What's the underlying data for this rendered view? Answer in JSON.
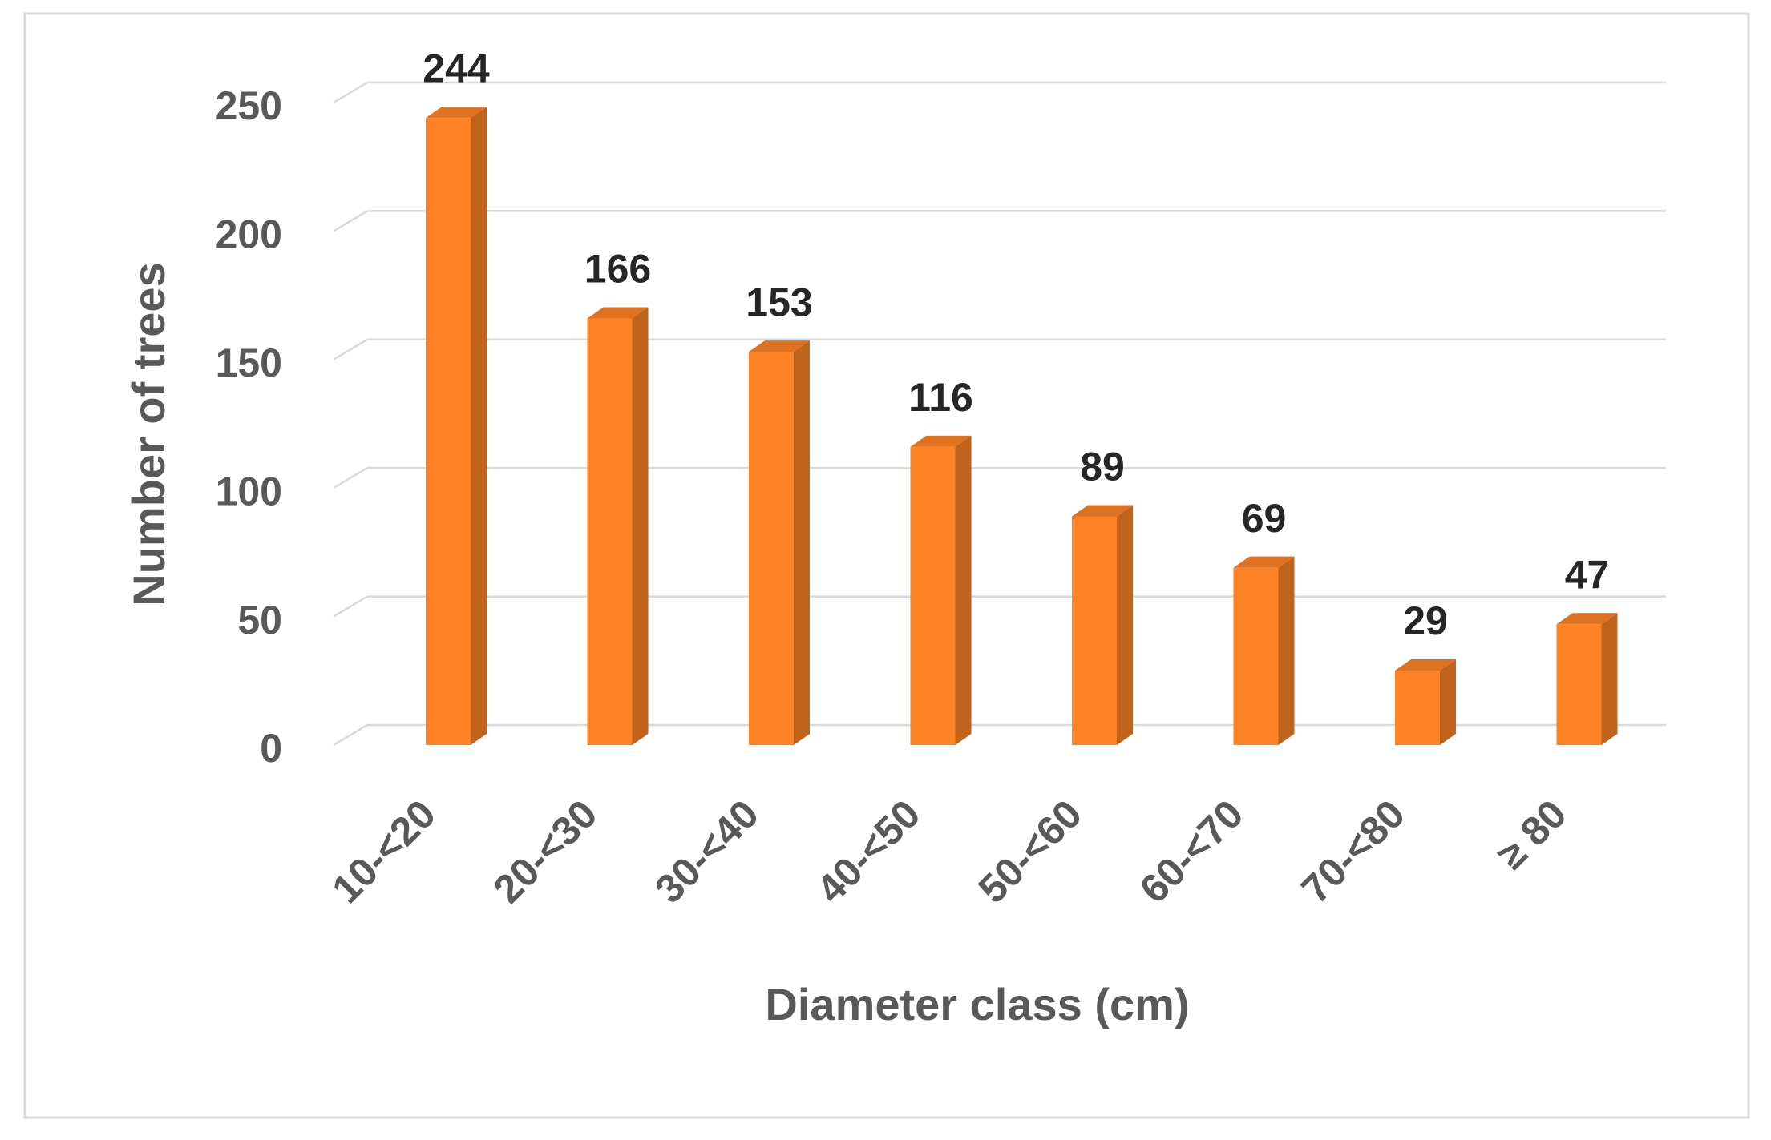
{
  "chart_data": {
    "type": "bar",
    "x_label": "Diameter class (cm)",
    "y_label": "Number of trees",
    "categories": [
      "10-<20",
      "20-<30",
      "30-<40",
      "40-<50",
      "50-<60",
      "60-<70",
      "70-<80",
      "≥ 80"
    ],
    "values": [
      244,
      166,
      153,
      116,
      89,
      69,
      29,
      47
    ],
    "color": "#fd8226",
    "ylim": [
      0,
      250
    ],
    "yticks": [
      0,
      50,
      100,
      150,
      200,
      250
    ],
    "grid": true
  }
}
